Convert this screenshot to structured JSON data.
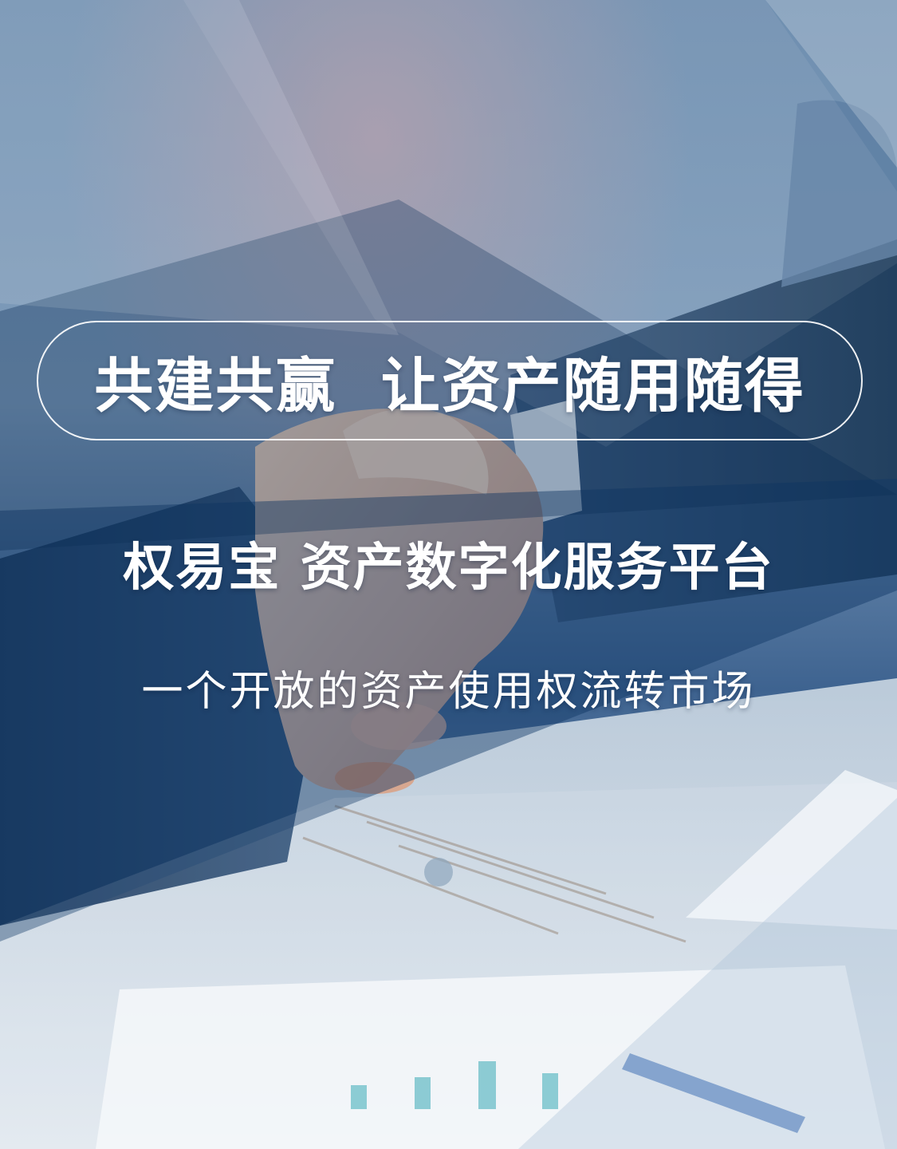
{
  "headline": "共建共赢  让资产随用随得",
  "subtitle": "权易宝 资产数字化服务平台",
  "tagline": "一个开放的资产使用权流转市场",
  "background": {
    "description_icon": "handshake-photo",
    "colors": {
      "overlay_dark": "#123a66",
      "overlay_light": "#9fb6cc",
      "skin": "#e8c4a8",
      "suit": "#2a4a6e"
    }
  }
}
